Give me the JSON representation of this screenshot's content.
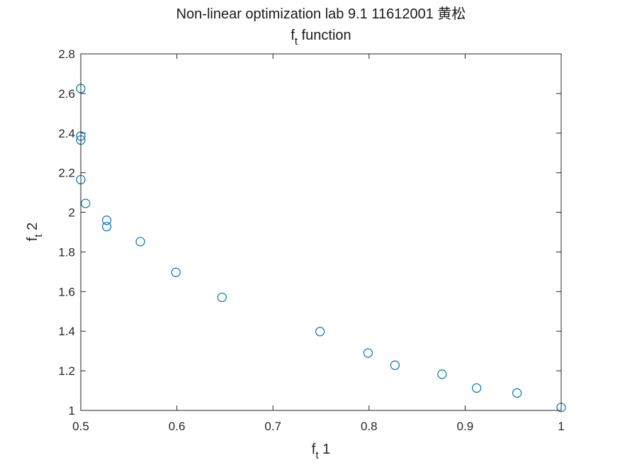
{
  "chart_data": {
    "type": "scatter",
    "title": "Non-linear optimization lab 9.1 11612001 黄松",
    "subtitle": {
      "base": "f",
      "sub": "t",
      "rest": " function"
    },
    "xlabel": {
      "base": "f",
      "sub": "t",
      "rest": " 1"
    },
    "ylabel": {
      "base": "f",
      "sub": "t",
      "rest": " 2"
    },
    "xlim": [
      0.5,
      1.0
    ],
    "ylim": [
      1.0,
      2.8
    ],
    "xticks": [
      0.5,
      0.6,
      0.7,
      0.8,
      0.9,
      1.0
    ],
    "xtick_labels": [
      "0.5",
      "0.6",
      "0.7",
      "0.8",
      "0.9",
      "1"
    ],
    "yticks": [
      1.0,
      1.2,
      1.4,
      1.6,
      1.8,
      2.0,
      2.2,
      2.4,
      2.6,
      2.8
    ],
    "ytick_labels": [
      "1",
      "1.2",
      "1.4",
      "1.6",
      "1.8",
      "2",
      "2.2",
      "2.4",
      "2.6",
      "2.8"
    ],
    "grid": false,
    "marker": "circle-open",
    "marker_color": "#0072bd",
    "series": [
      {
        "points": [
          {
            "x": 0.5,
            "y": 2.625
          },
          {
            "x": 0.5,
            "y": 2.385
          },
          {
            "x": 0.5,
            "y": 2.365
          },
          {
            "x": 0.5,
            "y": 2.165
          },
          {
            "x": 0.505,
            "y": 2.045
          },
          {
            "x": 0.527,
            "y": 1.96
          },
          {
            "x": 0.527,
            "y": 1.928
          },
          {
            "x": 0.562,
            "y": 1.852
          },
          {
            "x": 0.599,
            "y": 1.697
          },
          {
            "x": 0.647,
            "y": 1.571
          },
          {
            "x": 0.749,
            "y": 1.398
          },
          {
            "x": 0.799,
            "y": 1.29
          },
          {
            "x": 0.827,
            "y": 1.228
          },
          {
            "x": 0.876,
            "y": 1.183
          },
          {
            "x": 0.912,
            "y": 1.113
          },
          {
            "x": 0.954,
            "y": 1.088
          },
          {
            "x": 1.0,
            "y": 1.015
          }
        ]
      }
    ]
  }
}
